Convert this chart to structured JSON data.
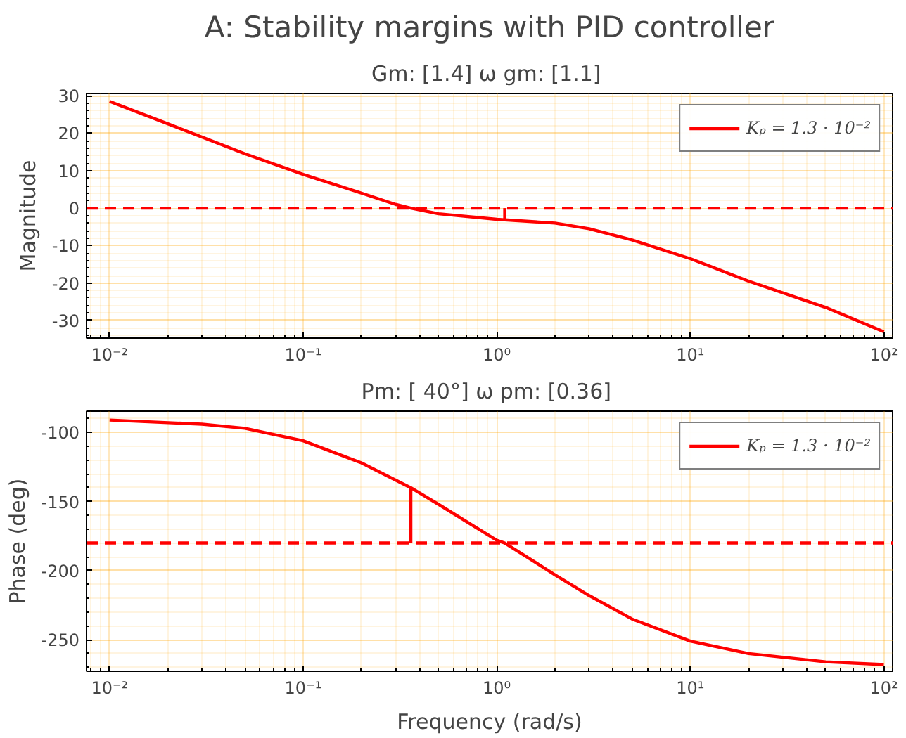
{
  "chart_data": [
    {
      "type": "line",
      "title": "A: Stability margins with PID controller",
      "subtitle": "Gm: [1.4]  ω gm: [1.1]",
      "ylabel": "Magnitude",
      "log": "x",
      "grid": true,
      "legend": "top right",
      "xlim": [
        0.0076,
        111
      ],
      "ylim": [
        -34.7,
        30.6
      ],
      "xticks": [
        {
          "value": 0.01,
          "label": "10⁻²"
        },
        {
          "value": 0.1,
          "label": "10⁻¹"
        },
        {
          "value": 1,
          "label": "10⁰"
        },
        {
          "value": 10,
          "label": "10¹"
        },
        {
          "value": 100,
          "label": "10²"
        }
      ],
      "yticks": [
        -30,
        -20,
        -10,
        0,
        10,
        20,
        30
      ],
      "ref_lines": [
        {
          "axis": "y",
          "value": 0,
          "color": "#ff0000",
          "line_style": "dashed"
        }
      ],
      "series": [
        {
          "name": "Kₚ = 1.3 · 10⁻²",
          "color": "#ff0000",
          "x": [
            0.01,
            0.02,
            0.05,
            0.1,
            0.2,
            0.3,
            0.36,
            0.5,
            1,
            2,
            3,
            5,
            10,
            20,
            50,
            100
          ],
          "values": [
            28.5,
            22.5,
            14.5,
            9,
            4,
            1,
            0,
            -1.5,
            -3,
            -4,
            -5.5,
            -8.5,
            -13.5,
            -19.5,
            -26.5,
            -33
          ]
        },
        {
          "type": "line",
          "color": "#ff0000",
          "x": [
            1.1,
            1.1
          ],
          "values": [
            0,
            -3.1
          ]
        }
      ]
    },
    {
      "type": "line",
      "title": "Pm: [ 40°]  ω pm: [0.36]",
      "xlabel": "Frequency (rad/s)",
      "ylabel": "Phase (deg)",
      "log": "x",
      "grid": true,
      "legend": "top right",
      "xlim": [
        0.0076,
        111
      ],
      "ylim": [
        -272.8,
        -84.6
      ],
      "xticks": [
        {
          "value": 0.01,
          "label": "10⁻²"
        },
        {
          "value": 0.1,
          "label": "10⁻¹"
        },
        {
          "value": 1,
          "label": "10⁰"
        },
        {
          "value": 10,
          "label": "10¹"
        },
        {
          "value": 100,
          "label": "10²"
        }
      ],
      "yticks": [
        -250,
        -200,
        -150,
        -100
      ],
      "ref_lines": [
        {
          "axis": "y",
          "value": -180,
          "color": "#ff0000",
          "line_style": "dashed"
        }
      ],
      "series": [
        {
          "name": "Kₚ = 1.3 · 10⁻²",
          "color": "#ff0000",
          "x": [
            0.01,
            0.03,
            0.05,
            0.1,
            0.2,
            0.36,
            0.5,
            1,
            1.1,
            2,
            3,
            5,
            10,
            20,
            50,
            100
          ],
          "values": [
            -91,
            -94,
            -97,
            -106,
            -122,
            -140,
            -152,
            -178,
            -180,
            -203,
            -218,
            -235,
            -251,
            -260,
            -266,
            -268
          ]
        },
        {
          "type": "line",
          "color": "#ff0000",
          "x": [
            0.36,
            0.36
          ],
          "values": [
            -180,
            -140
          ]
        }
      ]
    }
  ]
}
